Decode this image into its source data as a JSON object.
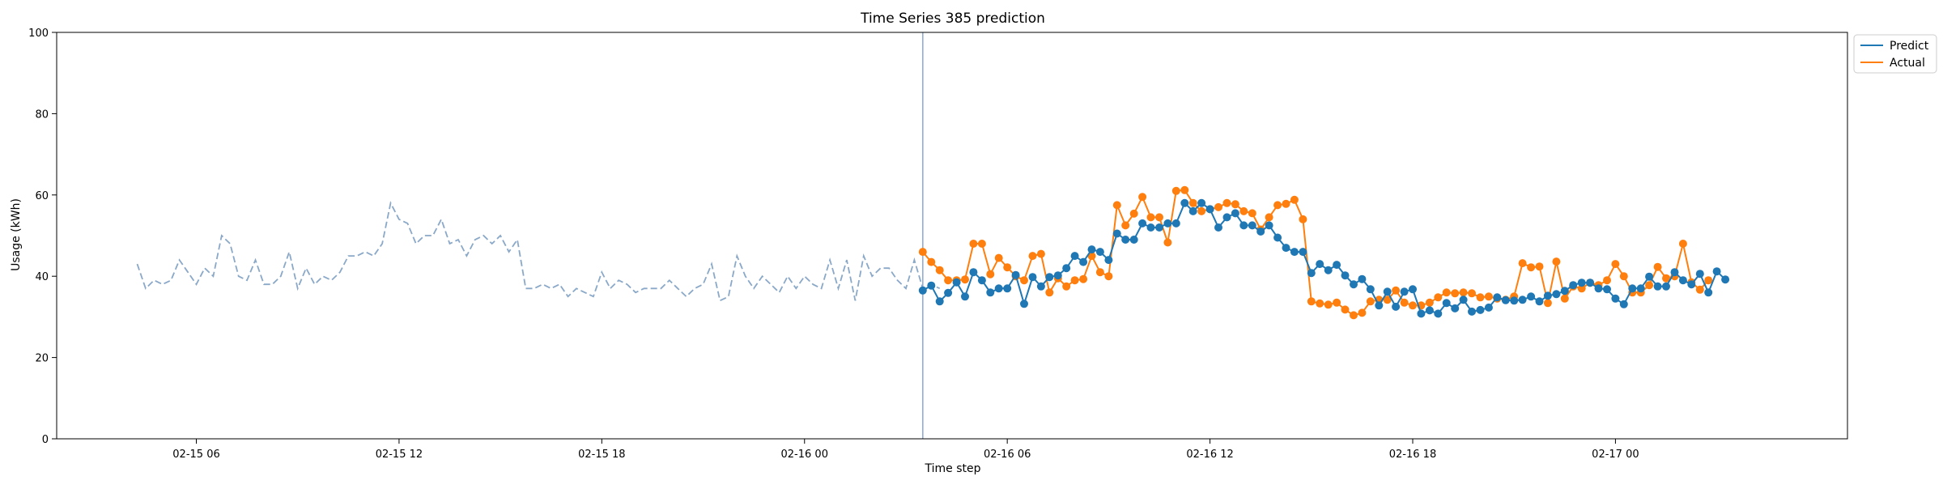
{
  "chart_data": {
    "type": "line",
    "title": "Time Series 385 prediction",
    "xlabel": "Time step",
    "ylabel": "Usage (kWh)",
    "ylim": [
      0,
      100
    ],
    "xlim": [
      "2016-02-15T01:52:00",
      "2016-02-17T06:52:00"
    ],
    "yticks": [
      0,
      20,
      40,
      60,
      80,
      100
    ],
    "xticks": [
      {
        "t": "2016-02-15T06:00:00",
        "label": "02-15 06"
      },
      {
        "t": "2016-02-15T12:00:00",
        "label": "02-15 12"
      },
      {
        "t": "2016-02-15T18:00:00",
        "label": "02-15 18"
      },
      {
        "t": "2016-02-16T00:00:00",
        "label": "02-16 00"
      },
      {
        "t": "2016-02-16T06:00:00",
        "label": "02-16 06"
      },
      {
        "t": "2016-02-16T12:00:00",
        "label": "02-16 12"
      },
      {
        "t": "2016-02-16T18:00:00",
        "label": "02-16 18"
      },
      {
        "t": "2016-02-17T00:00:00",
        "label": "02-17 00"
      }
    ],
    "grid": false,
    "legend_position": "outside-top-right",
    "split_time": "2016-02-16T03:30:00",
    "colors": {
      "history": "#8aa8c8",
      "predict": "#1f77b4",
      "actual": "#ff7f0e",
      "split": "#8aa8d0"
    },
    "step_minutes": 15,
    "history": {
      "start": "2016-02-15T04:15:00",
      "values": [
        43,
        37,
        39,
        38,
        39,
        44,
        41,
        38,
        42,
        40,
        50,
        48,
        40,
        39,
        44,
        38,
        38,
        40,
        46,
        37,
        42,
        38,
        40,
        39,
        41,
        45,
        45,
        46,
        45,
        48,
        58,
        54,
        53,
        48,
        50,
        50,
        54,
        48,
        49,
        45,
        49,
        50,
        48,
        50,
        46,
        49,
        37,
        37,
        38,
        37,
        38,
        35,
        37,
        36,
        35,
        41,
        37,
        39,
        38,
        36,
        37,
        37,
        37,
        39,
        37,
        35,
        37,
        38,
        43,
        34,
        35,
        45,
        40,
        37,
        40,
        38,
        36,
        40,
        37,
        40,
        38,
        37,
        44,
        37,
        44,
        34,
        45,
        40,
        42,
        42,
        39,
        37,
        44,
        37,
        38,
        37
      ]
    },
    "series": [
      {
        "name": "Predict",
        "start": "2016-02-16T03:30:00",
        "values": [
          36.5,
          37.7,
          33.8,
          35.9,
          38.5,
          35,
          41,
          39,
          36,
          37,
          37,
          40.3,
          33.2,
          39.8,
          37.5,
          39.8,
          40.2,
          42,
          45,
          43.5,
          46.6,
          46,
          44,
          50.5,
          49,
          49,
          53,
          52,
          52,
          53,
          53,
          58,
          56,
          58,
          56.5,
          52,
          54.5,
          55.5,
          52.5,
          52.5,
          51,
          52.5,
          49.5,
          47,
          46,
          46,
          40.8,
          43,
          41.5,
          42.8,
          40.2,
          38,
          39.3,
          36.8,
          32.8,
          36.2,
          32.5,
          36.2,
          36.8,
          30.8,
          31.6,
          30.8,
          33.4,
          32.1,
          34.2,
          31.3,
          31.7,
          32.3,
          34.8,
          34.1,
          34,
          34.2,
          35,
          33.8,
          35.2,
          35.6,
          36.4,
          37.8,
          38.4,
          38.4,
          37,
          36.8,
          34.5,
          33.1,
          37,
          37,
          39.9,
          37.5,
          37.5,
          41,
          39,
          38,
          40.6,
          36,
          41.2,
          39.2
        ]
      },
      {
        "name": "Actual",
        "start": "2016-02-16T03:30:00",
        "values": [
          46,
          43.5,
          41.5,
          39,
          39,
          39.2,
          48,
          48,
          40.5,
          44.5,
          42.2,
          40,
          39,
          45,
          45.5,
          36,
          39.5,
          37.5,
          39,
          39.3,
          45,
          41,
          40,
          57.5,
          52.5,
          55.4,
          59.5,
          54.5,
          54.5,
          48.3,
          61,
          61.2,
          58,
          56,
          56.5,
          57,
          58,
          57.7,
          56,
          55.5,
          51.5,
          54.5,
          57.5,
          57.8,
          58.8,
          54,
          33.8,
          33.3,
          33,
          33.5,
          31.8,
          30.4,
          31,
          33.8,
          34.2,
          34.2,
          36.5,
          33.5,
          32.8,
          32.8,
          33.5,
          34.8,
          36,
          35.8,
          36,
          35.8,
          34.8,
          35,
          34.5,
          34.2,
          35,
          43.2,
          42.2,
          42.4,
          33.4,
          43.6,
          34.5,
          37.5,
          37,
          38.4,
          37.8,
          39,
          43,
          40,
          36,
          36,
          37.8,
          42.3,
          39.5,
          40,
          48,
          38.5,
          36.7,
          39
        ]
      }
    ]
  }
}
